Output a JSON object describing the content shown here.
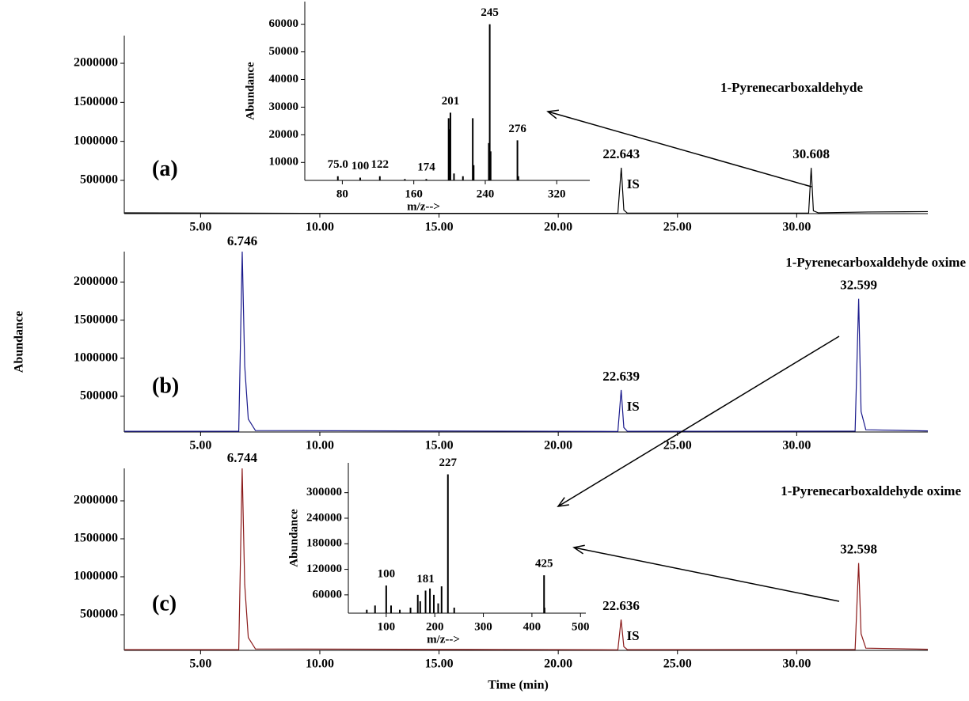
{
  "chart_data": [
    {
      "type": "line",
      "title": "1-Pyrenecarboxaldehyde",
      "panel_label": "(a)",
      "color": "#000000",
      "x": [
        1.8,
        10,
        22.5,
        22.643,
        22.75,
        22.9,
        30.5,
        30.608,
        30.7,
        30.9,
        33,
        35.5
      ],
      "values": [
        85000,
        78000,
        78000,
        662000,
        120000,
        80000,
        80000,
        660000,
        110000,
        85000,
        95000,
        100000
      ],
      "peaks": [
        {
          "x": 22.643,
          "note": "IS"
        },
        {
          "x": 30.608
        }
      ],
      "xlim": [
        1.8,
        35.5
      ],
      "ylim": [
        74000,
        2355000
      ],
      "xticks": [
        {
          "value": 5,
          "label": "5.00"
        },
        {
          "value": 10,
          "label": "10.00"
        },
        {
          "value": 15,
          "label": "15.00"
        },
        {
          "value": 20,
          "label": "20.00"
        },
        {
          "value": 25,
          "label": "25.00"
        },
        {
          "value": 30,
          "label": "30.00"
        }
      ],
      "yticks": [
        500000,
        1000000,
        1500000,
        2000000
      ]
    },
    {
      "type": "bar",
      "x_label": "m/z-->",
      "y_label": "Abundance",
      "color": "#000000",
      "x": [
        75,
        100,
        122,
        150,
        174,
        199,
        200,
        201,
        205,
        215,
        226,
        227,
        244,
        245,
        246,
        276,
        277
      ],
      "values": [
        5000,
        4500,
        5000,
        4000,
        4000,
        26000,
        22000,
        28000,
        6000,
        5000,
        26000,
        9000,
        17000,
        60000,
        14000,
        18000,
        5000
      ],
      "peak_labels": [
        {
          "value": 75,
          "label": "75.0"
        },
        100,
        122,
        174,
        201,
        245,
        276
      ],
      "xlim": [
        38,
        357
      ],
      "ylim": [
        3500,
        68200
      ],
      "xticks": [
        80,
        160,
        240,
        320
      ],
      "yticks": [
        10000,
        20000,
        30000,
        40000,
        50000,
        60000
      ]
    },
    {
      "type": "line",
      "title": "1-Pyrenecarboxaldehyde oxime",
      "panel_label": "(b)",
      "y_label": "Abundance",
      "color": "#1a1a8c",
      "x": [
        1.8,
        6.6,
        6.746,
        6.85,
        7.0,
        7.3,
        22.5,
        22.639,
        22.75,
        22.9,
        32.45,
        32.599,
        32.7,
        32.9,
        35.5
      ],
      "values": [
        40000,
        40000,
        2400000,
        900000,
        200000,
        50000,
        38000,
        583000,
        90000,
        40000,
        42000,
        1780000,
        300000,
        60000,
        45000
      ],
      "peaks": [
        {
          "x": 6.746
        },
        {
          "x": 22.639,
          "note": "IS"
        },
        {
          "x": 32.599
        }
      ],
      "xlim": [
        1.8,
        35.5
      ],
      "ylim": [
        31000,
        2400000
      ],
      "xticks": [
        {
          "value": 5,
          "label": "5.00"
        },
        {
          "value": 10,
          "label": "10.00"
        },
        {
          "value": 15,
          "label": "15.00"
        },
        {
          "value": 20,
          "label": "20.00"
        },
        {
          "value": 25,
          "label": "25.00"
        },
        {
          "value": 30,
          "label": "30.00"
        }
      ],
      "yticks": [
        500000,
        1000000,
        1500000,
        2000000
      ]
    },
    {
      "type": "line",
      "title": "1-Pyrenecarboxaldehyde oxime",
      "panel_label": "(c)",
      "x_label": "Time (min)",
      "color": "#8b1a1a",
      "x": [
        1.8,
        6.6,
        6.744,
        6.85,
        7.0,
        7.3,
        22.5,
        22.636,
        22.75,
        22.9,
        32.45,
        32.598,
        32.7,
        32.9,
        35.5
      ],
      "values": [
        40000,
        40000,
        2427000,
        900000,
        200000,
        50000,
        38000,
        437000,
        80000,
        40000,
        42000,
        1180000,
        250000,
        60000,
        45000
      ],
      "peaks": [
        {
          "x": 6.744
        },
        {
          "x": 22.636,
          "note": "IS"
        },
        {
          "x": 32.598
        }
      ],
      "xlim": [
        1.8,
        35.5
      ],
      "ylim": [
        31000,
        2427000
      ],
      "xticks": [
        {
          "value": 5,
          "label": "5.00"
        },
        {
          "value": 10,
          "label": "10.00"
        },
        {
          "value": 15,
          "label": "15.00"
        },
        {
          "value": 20,
          "label": "20.00"
        },
        {
          "value": 25,
          "label": "25.00"
        },
        {
          "value": 30,
          "label": "30.00"
        }
      ],
      "yticks": [
        500000,
        1000000,
        1500000,
        2000000
      ]
    },
    {
      "type": "bar",
      "x_label": "m/z-->",
      "y_label": "Abundance",
      "color": "#000000",
      "x": [
        60,
        77,
        100,
        110,
        128,
        150,
        165,
        170,
        181,
        190,
        198,
        207,
        214,
        227,
        240,
        425,
        426
      ],
      "values": [
        25000,
        35000,
        82000,
        35000,
        25000,
        30000,
        60000,
        45000,
        70000,
        75000,
        60000,
        40000,
        80000,
        343000,
        30000,
        106000,
        30000
      ],
      "peak_labels": [
        100,
        181,
        227,
        425
      ],
      "xlim": [
        22,
        511
      ],
      "ylim": [
        17000,
        370000
      ],
      "xticks": [
        100,
        200,
        300,
        400,
        500
      ],
      "yticks": [
        60000,
        120000,
        180000,
        240000,
        300000
      ]
    }
  ]
}
